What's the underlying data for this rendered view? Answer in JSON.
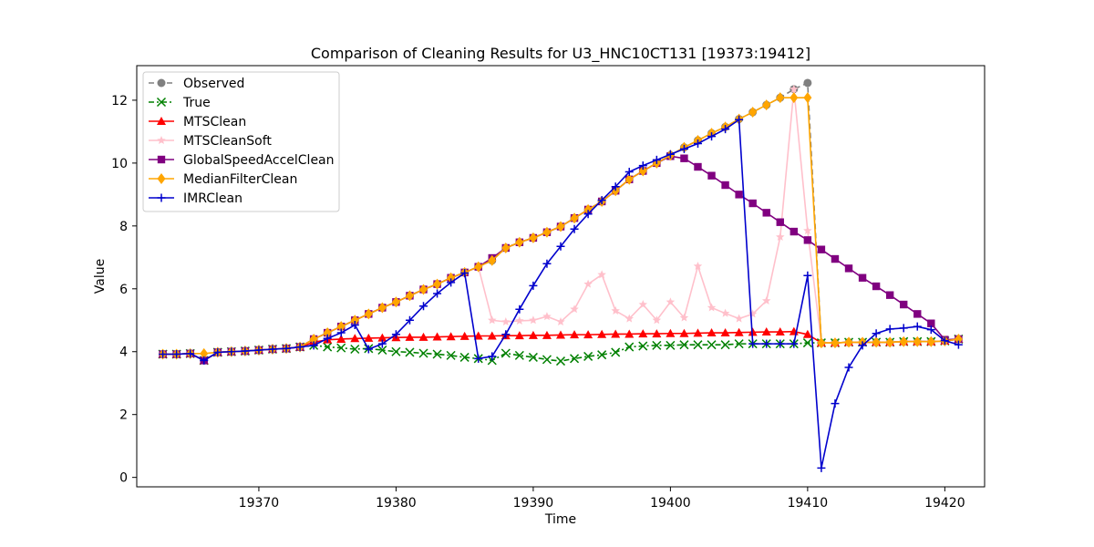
{
  "chart_data": {
    "type": "line",
    "title": "Comparison of Cleaning Results for U3_HNC10CT131 [19373:19412]",
    "xlabel": "Time",
    "ylabel": "Value",
    "xlim": [
      19361.1,
      19422.9
    ],
    "ylim": [
      -0.3,
      13.1
    ],
    "xticks": [
      19370,
      19380,
      19390,
      19400,
      19410,
      19420
    ],
    "yticks": [
      0,
      2,
      4,
      6,
      8,
      10,
      12
    ],
    "grid": false,
    "legend_position": "top-left",
    "x": [
      19363,
      19364,
      19365,
      19366,
      19367,
      19368,
      19369,
      19370,
      19371,
      19372,
      19373,
      19374,
      19375,
      19376,
      19377,
      19378,
      19379,
      19380,
      19381,
      19382,
      19383,
      19384,
      19385,
      19386,
      19387,
      19388,
      19389,
      19390,
      19391,
      19392,
      19393,
      19394,
      19395,
      19396,
      19397,
      19398,
      19399,
      19400,
      19401,
      19402,
      19403,
      19404,
      19405,
      19406,
      19407,
      19408,
      19409,
      19410,
      19411,
      19412,
      19413,
      19414,
      19415,
      19416,
      19417,
      19418,
      19419,
      19420,
      19421
    ],
    "series": [
      {
        "name": "Observed",
        "color": "#808080",
        "marker": "circle",
        "dash": "6,4",
        "values": [
          3.92,
          3.92,
          3.94,
          3.72,
          3.98,
          4.0,
          4.02,
          4.05,
          4.08,
          4.1,
          4.15,
          4.4,
          4.6,
          4.8,
          5.0,
          5.2,
          5.4,
          5.58,
          5.78,
          5.98,
          6.15,
          6.35,
          6.52,
          6.7,
          6.9,
          7.3,
          7.48,
          7.62,
          7.8,
          7.98,
          8.25,
          8.52,
          8.78,
          9.12,
          9.48,
          9.75,
          10.0,
          10.25,
          10.5,
          10.72,
          10.95,
          11.15,
          11.4,
          11.62,
          11.85,
          12.08,
          12.35,
          12.55,
          4.28,
          4.28,
          4.3,
          4.3,
          4.3,
          4.3,
          4.32,
          4.32,
          4.32,
          4.34,
          4.4
        ]
      },
      {
        "name": "True",
        "color": "#008000",
        "marker": "x",
        "dash": "6,3,2,3",
        "values": [
          3.92,
          3.92,
          3.94,
          3.72,
          3.98,
          4.0,
          4.02,
          4.05,
          4.08,
          4.1,
          4.15,
          4.2,
          4.15,
          4.12,
          4.08,
          4.1,
          4.05,
          4.0,
          3.98,
          3.95,
          3.92,
          3.88,
          3.82,
          3.78,
          3.72,
          3.95,
          3.88,
          3.82,
          3.75,
          3.7,
          3.78,
          3.85,
          3.9,
          3.98,
          4.15,
          4.18,
          4.2,
          4.2,
          4.22,
          4.22,
          4.22,
          4.22,
          4.25,
          4.25,
          4.25,
          4.25,
          4.25,
          4.28,
          4.28,
          4.28,
          4.3,
          4.3,
          4.3,
          4.3,
          4.32,
          4.32,
          4.32,
          4.34,
          4.4
        ]
      },
      {
        "name": "MTSClean",
        "color": "#ff0000",
        "marker": "triangle",
        "dash": "",
        "values": [
          3.92,
          3.92,
          3.94,
          3.72,
          3.98,
          4.0,
          4.02,
          4.05,
          4.08,
          4.1,
          4.15,
          4.3,
          4.38,
          4.4,
          4.42,
          4.43,
          4.44,
          4.45,
          4.46,
          4.46,
          4.47,
          4.48,
          4.49,
          4.5,
          4.5,
          4.51,
          4.51,
          4.52,
          4.52,
          4.53,
          4.54,
          4.54,
          4.55,
          4.56,
          4.56,
          4.57,
          4.57,
          4.58,
          4.58,
          4.59,
          4.6,
          4.6,
          4.61,
          4.62,
          4.63,
          4.63,
          4.64,
          4.55,
          4.28,
          4.28,
          4.3,
          4.3,
          4.3,
          4.3,
          4.32,
          4.32,
          4.32,
          4.34,
          4.4
        ]
      },
      {
        "name": "MTSCleanSoft",
        "color": "#ffc0cb",
        "marker": "star",
        "dash": "",
        "values": [
          3.92,
          3.92,
          3.94,
          3.72,
          3.98,
          4.0,
          4.02,
          4.05,
          4.08,
          4.1,
          4.15,
          4.4,
          4.6,
          4.8,
          5.0,
          5.2,
          5.4,
          5.58,
          5.78,
          5.98,
          6.15,
          6.35,
          6.52,
          6.7,
          5.0,
          4.95,
          4.98,
          5.0,
          5.12,
          4.95,
          5.35,
          6.15,
          6.45,
          5.3,
          5.05,
          5.5,
          5.0,
          5.58,
          5.08,
          6.72,
          5.4,
          5.22,
          5.05,
          5.2,
          5.62,
          7.65,
          12.35,
          7.85,
          4.28,
          4.28,
          4.3,
          4.3,
          4.3,
          4.3,
          4.32,
          4.32,
          4.32,
          4.34,
          4.4
        ]
      },
      {
        "name": "GlobalSpeedAccelClean",
        "color": "#800080",
        "marker": "square",
        "dash": "",
        "values": [
          3.92,
          3.92,
          3.94,
          3.72,
          3.98,
          4.0,
          4.02,
          4.05,
          4.08,
          4.1,
          4.15,
          4.4,
          4.6,
          4.8,
          5.0,
          5.2,
          5.4,
          5.58,
          5.78,
          5.98,
          6.15,
          6.35,
          6.52,
          6.7,
          6.98,
          7.3,
          7.48,
          7.62,
          7.8,
          7.98,
          8.25,
          8.52,
          8.78,
          9.12,
          9.48,
          9.75,
          10.0,
          10.22,
          10.15,
          9.88,
          9.6,
          9.3,
          9.0,
          8.72,
          8.42,
          8.12,
          7.82,
          7.55,
          7.25,
          6.95,
          6.65,
          6.35,
          6.08,
          5.8,
          5.5,
          5.2,
          4.9,
          4.38,
          4.4
        ]
      },
      {
        "name": "MedianFilterClean",
        "color": "#ffa500",
        "marker": "diamond",
        "dash": "",
        "values": [
          3.92,
          3.92,
          3.94,
          3.94,
          3.98,
          4.0,
          4.02,
          4.05,
          4.08,
          4.1,
          4.15,
          4.4,
          4.6,
          4.8,
          5.0,
          5.2,
          5.4,
          5.58,
          5.78,
          5.98,
          6.15,
          6.35,
          6.52,
          6.7,
          6.9,
          7.3,
          7.48,
          7.62,
          7.8,
          7.98,
          8.25,
          8.52,
          8.78,
          9.12,
          9.48,
          9.75,
          10.0,
          10.25,
          10.5,
          10.72,
          10.95,
          11.15,
          11.4,
          11.62,
          11.85,
          12.08,
          12.08,
          12.08,
          4.28,
          4.28,
          4.3,
          4.3,
          4.3,
          4.3,
          4.32,
          4.32,
          4.32,
          4.34,
          4.4
        ]
      },
      {
        "name": "IMRClean",
        "color": "#0000cd",
        "marker": "plus",
        "dash": "",
        "values": [
          3.92,
          3.92,
          3.94,
          3.72,
          3.98,
          4.0,
          4.02,
          4.05,
          4.08,
          4.1,
          4.15,
          4.2,
          4.42,
          4.6,
          4.85,
          4.08,
          4.25,
          4.55,
          5.0,
          5.45,
          5.85,
          6.2,
          6.5,
          3.78,
          3.85,
          4.55,
          5.35,
          6.1,
          6.8,
          7.35,
          7.9,
          8.38,
          8.82,
          9.25,
          9.72,
          9.92,
          10.1,
          10.28,
          10.45,
          10.62,
          10.85,
          11.08,
          11.38,
          4.25,
          4.25,
          4.25,
          4.25,
          6.42,
          0.3,
          2.35,
          3.5,
          4.2,
          4.58,
          4.72,
          4.75,
          4.8,
          4.7,
          4.35,
          4.22
        ]
      }
    ]
  }
}
